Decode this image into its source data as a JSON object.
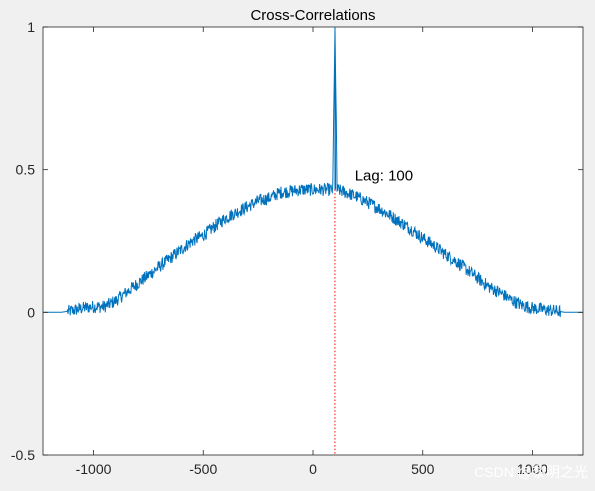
{
  "chart_data": {
    "type": "line",
    "title": "Cross-Correlations",
    "xlabel": "",
    "ylabel": "",
    "xlim": [
      -1230,
      1230
    ],
    "ylim": [
      -0.5,
      1
    ],
    "x_ticks": [
      -1000,
      -500,
      0,
      500,
      1000
    ],
    "x_tick_labels": [
      "-1000",
      "-500",
      "0",
      "500",
      "1000"
    ],
    "y_ticks": [
      -0.5,
      0,
      0.5,
      1
    ],
    "y_tick_labels": [
      "-0.5",
      "0",
      "0.5",
      "1"
    ],
    "grid": false,
    "series": [
      {
        "name": "",
        "color": "#0072bd",
        "x": [
          -1230,
          -1150,
          -1100,
          -1050,
          -1000,
          -950,
          -900,
          -850,
          -800,
          -750,
          -700,
          -650,
          -600,
          -550,
          -500,
          -450,
          -400,
          -350,
          -300,
          -250,
          -200,
          -150,
          -100,
          -50,
          0,
          50,
          90,
          100,
          110,
          150,
          200,
          250,
          300,
          350,
          400,
          450,
          500,
          550,
          600,
          650,
          700,
          750,
          800,
          850,
          900,
          950,
          1000,
          1050,
          1100,
          1150,
          1230
        ],
        "values": [
          0,
          0,
          0.005,
          0.015,
          0.02,
          0.02,
          0.04,
          0.07,
          0.1,
          0.13,
          0.16,
          0.19,
          0.22,
          0.25,
          0.27,
          0.3,
          0.33,
          0.35,
          0.37,
          0.39,
          0.4,
          0.42,
          0.425,
          0.43,
          0.43,
          0.43,
          0.43,
          1.0,
          0.43,
          0.42,
          0.405,
          0.385,
          0.365,
          0.34,
          0.315,
          0.29,
          0.26,
          0.235,
          0.205,
          0.18,
          0.15,
          0.12,
          0.09,
          0.07,
          0.045,
          0.025,
          0.015,
          0.01,
          0.005,
          0,
          0
        ]
      }
    ],
    "reference_line": {
      "x": 100,
      "style": "dotted",
      "color": "#ff0000"
    },
    "annotation": {
      "text": "Lag: 100",
      "x": 190,
      "y": 0.48
    }
  },
  "watermark": "CSDN @黎明之光"
}
